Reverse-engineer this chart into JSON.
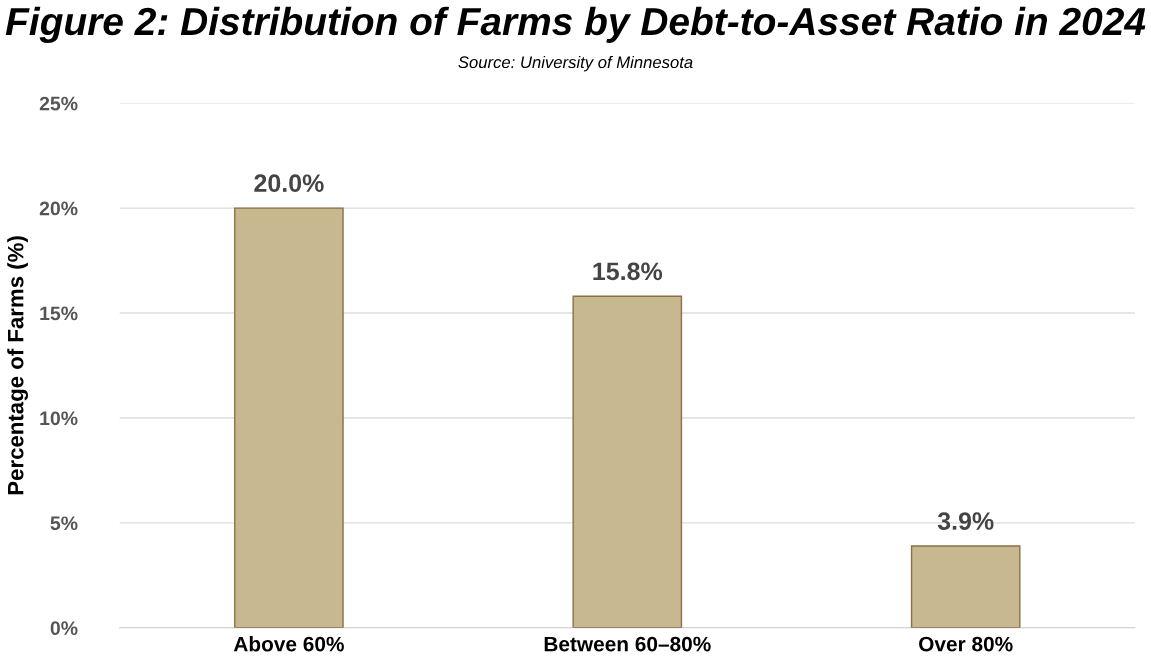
{
  "chart_data": {
    "type": "bar",
    "title": "Figure 2: Distribution of Farms by Debt-to-Asset Ratio in 2024",
    "annotations": [
      "Source: University of Minnesota"
    ],
    "ylabel": "Percentage of Farms (%)",
    "categories": [
      "Above 60%",
      "Between 60–80%",
      "Over 80%"
    ],
    "values": [
      20.0,
      15.8,
      3.9
    ],
    "value_labels": [
      "20.0%",
      "15.8%",
      "3.9%"
    ],
    "color": "#c8b88f",
    "ylim": [
      0,
      25
    ],
    "yticks": [
      {
        "value": 0,
        "label": "0%"
      },
      {
        "value": 5,
        "label": "5%"
      },
      {
        "value": 10,
        "label": "10%"
      },
      {
        "value": 15,
        "label": "15%"
      },
      {
        "value": 20,
        "label": "20%"
      },
      {
        "value": 25,
        "label": "25%"
      }
    ],
    "grid": "y",
    "legend": false
  }
}
